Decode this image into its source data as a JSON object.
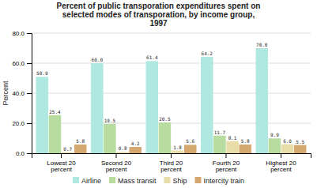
{
  "chart_data": {
    "type": "bar",
    "title": "Percent of public transporation expenditures spent on\nselected modes of transporation, by income group,\n1997",
    "categories": [
      "Lowest 20\npercent",
      "Second 20\npercent",
      "Third 20\npercent",
      "Fourth 20\npercent",
      "Highest 20\npercent"
    ],
    "series": [
      {
        "name": "Airline",
        "color": "#aee8e0",
        "values": [
          50.9,
          60.0,
          61.4,
          64.2,
          70.0
        ],
        "value_labels": [
          "50.9",
          "60.0",
          "61.4",
          "64.2",
          "70.0"
        ]
      },
      {
        "name": "Mass transit",
        "color": "#b8dca0",
        "values": [
          25.4,
          19.5,
          20.5,
          11.7,
          9.9
        ]
      },
      {
        "name": "Ship",
        "color": "#e8dca8",
        "values": [
          0.7,
          0.8,
          1.8,
          8.1,
          6.0
        ],
        "value_labels": [
          "0.7",
          "0.8",
          "1.8",
          "8.1",
          "6.0"
        ]
      },
      {
        "name": "Intercity train",
        "color": "#d4a870",
        "values": [
          5.8,
          4.2,
          5.6,
          5.8,
          5.5
        ]
      }
    ],
    "ylabel": "Percent",
    "ylim": [
      0,
      80.0
    ],
    "yticks": [
      {
        "value": 0,
        "label": "0.0"
      },
      {
        "value": 20,
        "label": "20.0"
      },
      {
        "value": 40,
        "label": "40.0"
      },
      {
        "value": 60,
        "label": "60.0"
      },
      {
        "value": 80,
        "label": "80.0"
      }
    ],
    "grid": true,
    "legend": "bottom",
    "data_labels": true
  }
}
